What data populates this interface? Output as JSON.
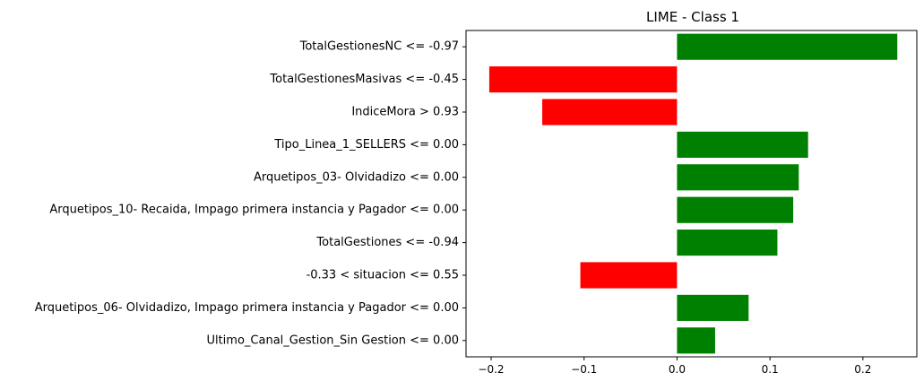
{
  "chart_data": {
    "type": "bar",
    "orientation": "horizontal",
    "title": "LIME - Class 1",
    "xlabel": "",
    "ylabel": "",
    "categories": [
      "TotalGestionesNC <= -0.97",
      "TotalGestionesMasivas <= -0.45",
      "IndiceMora > 0.93",
      "Tipo_Linea_1_SELLERS <= 0.00",
      "Arquetipos_03- Olvidadizo <= 0.00",
      "Arquetipos_10- Recaida, Impago primera instancia y Pagador <= 0.00",
      "TotalGestiones <= -0.94",
      "-0.33 < situacion <= 0.55",
      "Arquetipos_06- Olvidadizo, Impago primera instancia y Pagador <= 0.00",
      "Ultimo_Canal_Gestion_Sin Gestion <= 0.00"
    ],
    "values": [
      0.237,
      -0.202,
      -0.145,
      0.141,
      0.131,
      0.125,
      0.108,
      -0.104,
      0.077,
      0.041
    ],
    "xlim": [
      -0.227,
      0.258
    ],
    "xticks": [
      -0.2,
      -0.1,
      0.0,
      0.1,
      0.2
    ],
    "xtick_labels": [
      "−0.2",
      "−0.1",
      "0.0",
      "0.1",
      "0.2"
    ],
    "positive_color": "#008000",
    "negative_color": "#ff0000",
    "grid": false,
    "legend": "none"
  }
}
